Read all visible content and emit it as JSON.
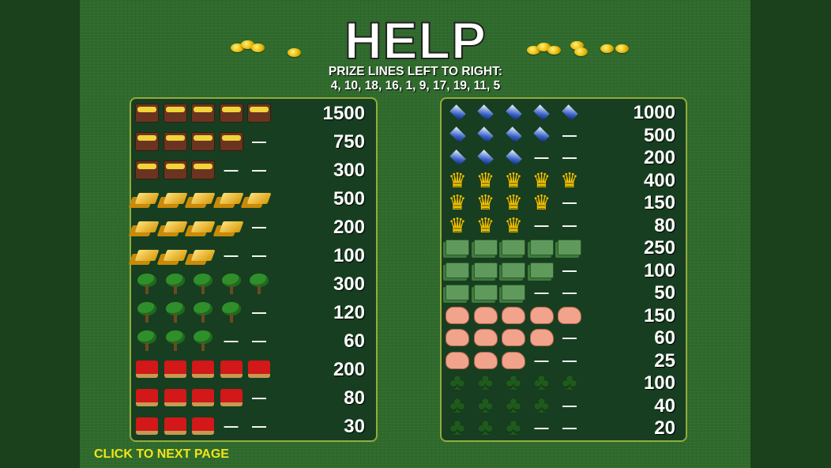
{
  "header": {
    "title": "HELP",
    "subtitle_line1": "PRIZE LINES LEFT TO RIGHT:",
    "subtitle_line2": "4, 10, 18, 16, 1, 9, 17, 19, 11, 5"
  },
  "dash": "—",
  "left_table": [
    {
      "symbol": "treasure-chest",
      "count": 5,
      "payout": "1500"
    },
    {
      "symbol": "treasure-chest",
      "count": 4,
      "payout": "750"
    },
    {
      "symbol": "treasure-chest",
      "count": 3,
      "payout": "300"
    },
    {
      "symbol": "gold-bars",
      "count": 5,
      "payout": "500"
    },
    {
      "symbol": "gold-bars",
      "count": 4,
      "payout": "200"
    },
    {
      "symbol": "gold-bars",
      "count": 3,
      "payout": "100"
    },
    {
      "symbol": "money-tree",
      "count": 5,
      "payout": "300"
    },
    {
      "symbol": "money-tree",
      "count": 4,
      "payout": "120"
    },
    {
      "symbol": "money-tree",
      "count": 3,
      "payout": "60"
    },
    {
      "symbol": "cash-register",
      "count": 5,
      "payout": "200"
    },
    {
      "symbol": "cash-register",
      "count": 4,
      "payout": "80"
    },
    {
      "symbol": "cash-register",
      "count": 3,
      "payout": "30"
    }
  ],
  "right_table": [
    {
      "symbol": "diamond",
      "count": 5,
      "payout": "1000"
    },
    {
      "symbol": "diamond",
      "count": 4,
      "payout": "500"
    },
    {
      "symbol": "diamond",
      "count": 3,
      "payout": "200"
    },
    {
      "symbol": "crown",
      "count": 5,
      "payout": "400"
    },
    {
      "symbol": "crown",
      "count": 4,
      "payout": "150"
    },
    {
      "symbol": "crown",
      "count": 3,
      "payout": "80"
    },
    {
      "symbol": "cash-stack",
      "count": 5,
      "payout": "250"
    },
    {
      "symbol": "cash-stack",
      "count": 4,
      "payout": "100"
    },
    {
      "symbol": "cash-stack",
      "count": 3,
      "payout": "50"
    },
    {
      "symbol": "piggy-bank",
      "count": 5,
      "payout": "150"
    },
    {
      "symbol": "piggy-bank",
      "count": 4,
      "payout": "60"
    },
    {
      "symbol": "piggy-bank",
      "count": 3,
      "payout": "25"
    },
    {
      "symbol": "four-leaf-clover",
      "count": 5,
      "payout": "100"
    },
    {
      "symbol": "four-leaf-clover",
      "count": 4,
      "payout": "40"
    },
    {
      "symbol": "four-leaf-clover",
      "count": 3,
      "payout": "20"
    }
  ],
  "footer": {
    "next_page_label": "CLICK TO NEXT PAGE"
  },
  "colors": {
    "background": "#2f6a2c",
    "panel": "#173e20",
    "panel_border": "#94ab3c",
    "next_link": "#f2e41a"
  }
}
